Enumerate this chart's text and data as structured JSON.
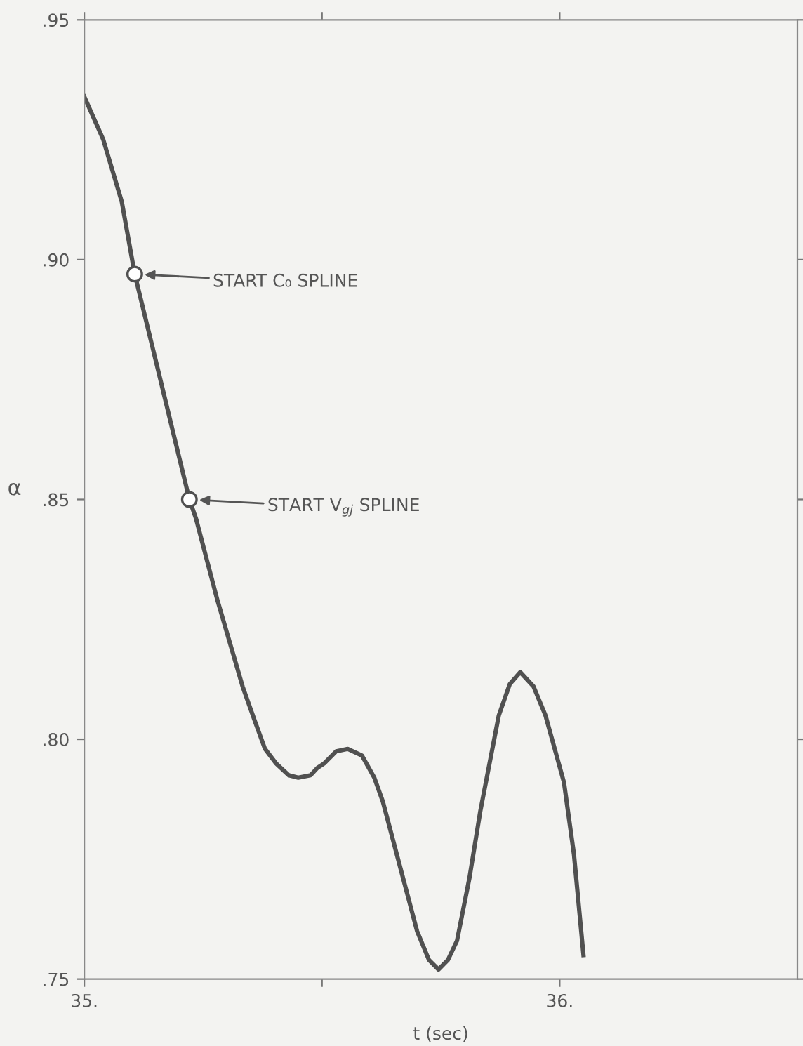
{
  "chart_data": {
    "type": "line",
    "xlabel": "t (sec)",
    "ylabel": "α",
    "xlim": [
      35,
      36.5
    ],
    "ylim": [
      0.75,
      0.95
    ],
    "xticks": [
      {
        "value": 35,
        "label": "35."
      },
      {
        "value": 35.5,
        "label": null
      },
      {
        "value": 36,
        "label": "36."
      }
    ],
    "yticks": [
      {
        "value": 0.75,
        "label": ".75"
      },
      {
        "value": 0.8,
        "label": ".80"
      },
      {
        "value": 0.85,
        "label": ".85"
      },
      {
        "value": 0.9,
        "label": ".90"
      },
      {
        "value": 0.95,
        "label": ".95"
      }
    ],
    "grid": false,
    "series": [
      {
        "color": "#505050",
        "marker": "none",
        "line_style": "solid",
        "x": [
          35.0,
          35.04,
          35.079,
          35.106,
          35.16,
          35.221,
          35.235,
          35.28,
          35.333,
          35.358,
          35.38,
          35.403,
          35.43,
          35.45,
          35.476,
          35.49,
          35.505,
          35.53,
          35.554,
          35.584,
          35.61,
          35.628,
          35.66,
          35.7,
          35.725,
          35.745,
          35.765,
          35.784,
          35.81,
          35.833,
          35.872,
          35.895,
          35.917,
          35.945,
          35.97,
          36.009,
          36.03,
          36.05
        ],
        "values": [
          0.934,
          0.925,
          0.912,
          0.897,
          0.875,
          0.85,
          0.846,
          0.829,
          0.811,
          0.804,
          0.798,
          0.795,
          0.7925,
          0.792,
          0.7925,
          0.794,
          0.795,
          0.7975,
          0.798,
          0.7966,
          0.792,
          0.787,
          0.775,
          0.76,
          0.754,
          0.752,
          0.754,
          0.758,
          0.771,
          0.785,
          0.805,
          0.8115,
          0.814,
          0.811,
          0.805,
          0.791,
          0.776,
          0.755
        ]
      },
      {
        "type": "scatter",
        "color": "#505050",
        "marker": "circle",
        "x": [
          35.106,
          35.221
        ],
        "values": [
          0.897,
          0.85
        ]
      }
    ],
    "annotations": [
      "START C₀ SPLINE",
      "START V$_{gj}$ SPLINE"
    ]
  }
}
